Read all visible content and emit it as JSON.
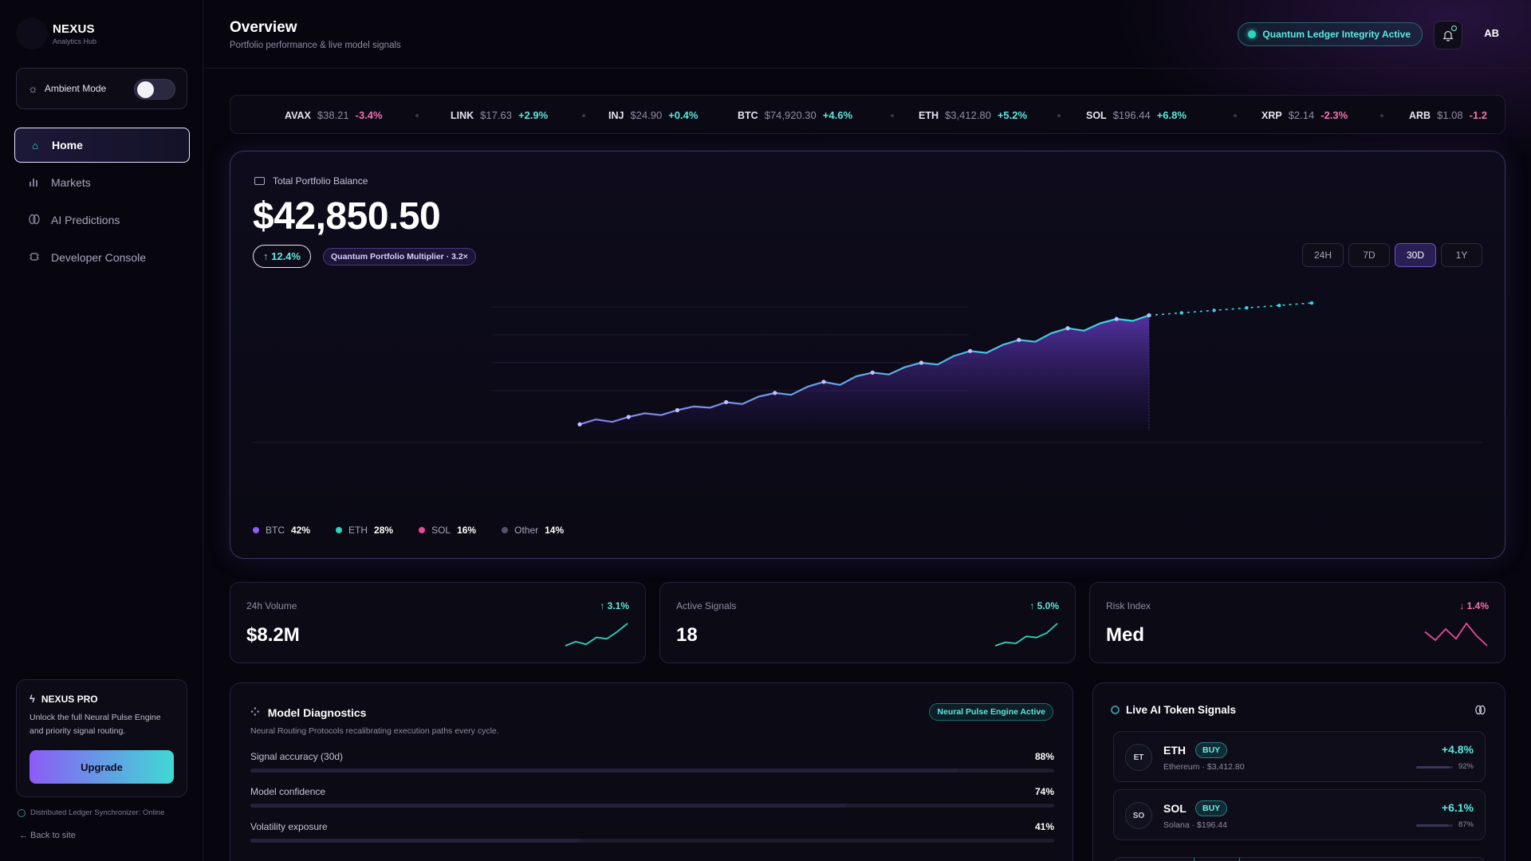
{
  "brand": {
    "name": "NEXUS",
    "subtitle": "Analytics Hub"
  },
  "ambient": {
    "label": "Ambient Mode",
    "enabled": false
  },
  "nav": [
    {
      "label": "Home",
      "icon": "home-icon",
      "active": true
    },
    {
      "label": "Markets",
      "icon": "bar-chart-icon",
      "active": false
    },
    {
      "label": "AI Predictions",
      "icon": "brain-icon",
      "active": false
    },
    {
      "label": "Developer Console",
      "icon": "chip-icon",
      "active": false
    }
  ],
  "pro": {
    "title": "NEXUS PRO",
    "description": "Unlock the full Neural Pulse Engine and priority signal routing.",
    "button": "Upgrade"
  },
  "sync_status": "Distributed Ledger Synchronizer: Online",
  "back_link": "← Back to site",
  "header": {
    "title": "Overview",
    "subtitle": "Portfolio performance & live model signals",
    "integrity_badge": "Quantum Ledger Integrity Active",
    "avatar": "AB"
  },
  "ticker": [
    {
      "symbol": "AVAX",
      "price": "$38.21",
      "change": "-3.4%",
      "dir": "down"
    },
    {
      "symbol": "LINK",
      "price": "$17.63",
      "change": "+2.9%",
      "dir": "up"
    },
    {
      "symbol": "INJ",
      "price": "$24.90",
      "change": "+0.4%",
      "dir": "up"
    },
    {
      "symbol": "BTC",
      "price": "$74,920.30",
      "change": "+4.6%",
      "dir": "up"
    },
    {
      "symbol": "ETH",
      "price": "$3,412.80",
      "change": "+5.2%",
      "dir": "up"
    },
    {
      "symbol": "SOL",
      "price": "$196.44",
      "change": "+6.8%",
      "dir": "up"
    },
    {
      "symbol": "XRP",
      "price": "$2.14",
      "change": "-2.3%",
      "dir": "down"
    },
    {
      "symbol": "ARB",
      "price": "$1.08",
      "change": "-1.2",
      "dir": "down"
    }
  ],
  "portfolio": {
    "label": "Total Portfolio Balance",
    "balance": "$42,850.50",
    "change": "↑ 12.4%",
    "multiplier": "Quantum Portfolio Multiplier · 3.2×",
    "ranges": [
      {
        "label": "24H",
        "active": false
      },
      {
        "label": "7D",
        "active": false
      },
      {
        "label": "30D",
        "active": true
      },
      {
        "label": "1Y",
        "active": false
      }
    ],
    "allocation": [
      {
        "name": "BTC",
        "pct": "42%",
        "color": "#8b5cf6"
      },
      {
        "name": "ETH",
        "pct": "28%",
        "color": "#2dd4bf"
      },
      {
        "name": "SOL",
        "pct": "16%",
        "color": "#ec4899"
      },
      {
        "name": "Other",
        "pct": "14%",
        "color": "#55536a"
      }
    ]
  },
  "chart_data": {
    "type": "line",
    "title": "",
    "xlabel": "",
    "ylabel": "",
    "grid": true,
    "series": [
      {
        "values": [
          10,
          18,
          14,
          22,
          28,
          25,
          33,
          39,
          37,
          46,
          43,
          55,
          61,
          58,
          71,
          79,
          74,
          88,
          94,
          91,
          103,
          110,
          107,
          121,
          129,
          126,
          139,
          147,
          144,
          158,
          166,
          162,
          174,
          181,
          178,
          187
        ]
      },
      {
        "values": [
          null,
          null,
          null,
          null,
          null,
          null,
          null,
          null,
          null,
          null,
          null,
          null,
          null,
          null,
          null,
          null,
          null,
          null,
          null,
          null,
          null,
          null,
          null,
          null,
          null,
          null,
          null,
          null,
          null,
          null,
          null,
          null,
          null,
          null,
          null,
          187,
          189,
          191,
          193,
          195,
          197,
          199,
          201,
          203,
          205,
          207
        ]
      }
    ],
    "ylim": [
      0,
      220
    ]
  },
  "stats": [
    {
      "label": "24h Volume",
      "value": "$8.2M",
      "change": "↑ 3.1%",
      "dir": "up",
      "spark": [
        4,
        7,
        5,
        10,
        9,
        14,
        20
      ]
    },
    {
      "label": "Active Signals",
      "value": "18",
      "change": "↑ 5.0%",
      "dir": "up",
      "spark": [
        3,
        6,
        5,
        11,
        10,
        14,
        22
      ]
    },
    {
      "label": "Risk Index",
      "value": "Med",
      "change": "↓ 1.4%",
      "dir": "down",
      "spark": [
        12,
        6,
        14,
        7,
        18,
        9,
        2
      ]
    }
  ],
  "diagnostics": {
    "title": "Model Diagnostics",
    "subtitle": "Neural Routing Protocols recalibrating execution paths every cycle.",
    "badge": "Neural Pulse Engine Active",
    "metrics": [
      {
        "label": "Signal accuracy (30d)",
        "value": "88%",
        "level": 88
      },
      {
        "label": "Model confidence",
        "value": "74%",
        "level": 74
      },
      {
        "label": "Volatility exposure",
        "value": "41%",
        "level": 41
      }
    ]
  },
  "signals": {
    "title": "Live AI Token Signals",
    "items": [
      {
        "abbr": "ET",
        "symbol": "ETH",
        "action": "BUY",
        "sub": "Ethereum · $3,412.80",
        "change": "+4.8%",
        "confidence": "92%",
        "level": 92
      },
      {
        "abbr": "SO",
        "symbol": "SOL",
        "action": "BUY",
        "sub": "Solana · $196.44",
        "change": "+6.1%",
        "confidence": "87%",
        "level": 87
      }
    ]
  },
  "colors": {
    "accent": "#8b5cf6",
    "teal": "#2dd4bf",
    "pink": "#f472b6",
    "bg": "#07060f"
  }
}
